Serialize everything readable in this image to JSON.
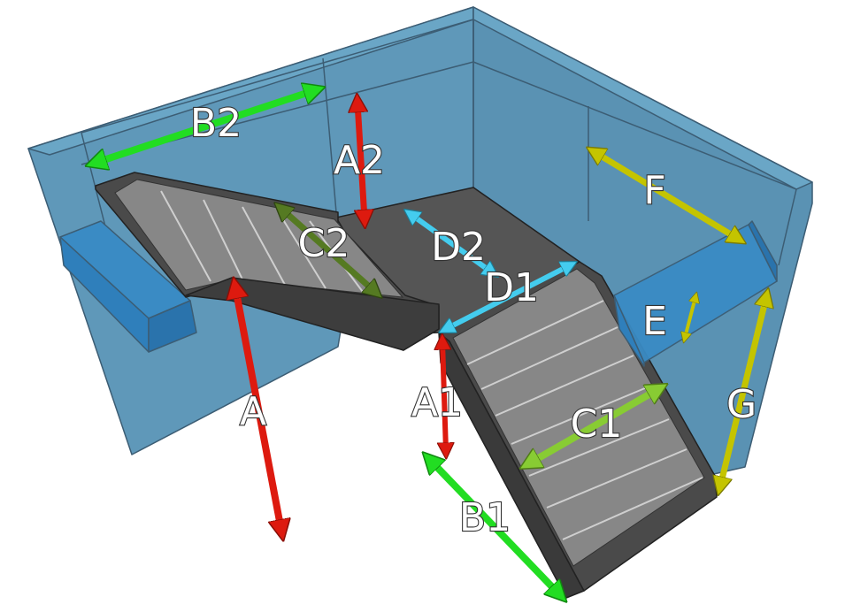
{
  "labels": {
    "A": "A",
    "A1": "A1",
    "A2": "A2",
    "B1": "B1",
    "B2": "B2",
    "C1": "C1",
    "C2": "C2",
    "D1": "D1",
    "D2": "D2",
    "E": "E",
    "F": "F",
    "G": "G"
  },
  "colors": {
    "wall": "#5f98b9",
    "wall_dark": "#4f86a7",
    "box": "#2f82bf",
    "stairs": "#4a4a4a",
    "treads": "#878787",
    "landing": "#555555",
    "red": "#dd1a0f",
    "green": "#22dd22",
    "light_green": "#88cc33",
    "dark_green": "#557a22",
    "cyan": "#44ccee",
    "yellow": "#c4c400"
  }
}
